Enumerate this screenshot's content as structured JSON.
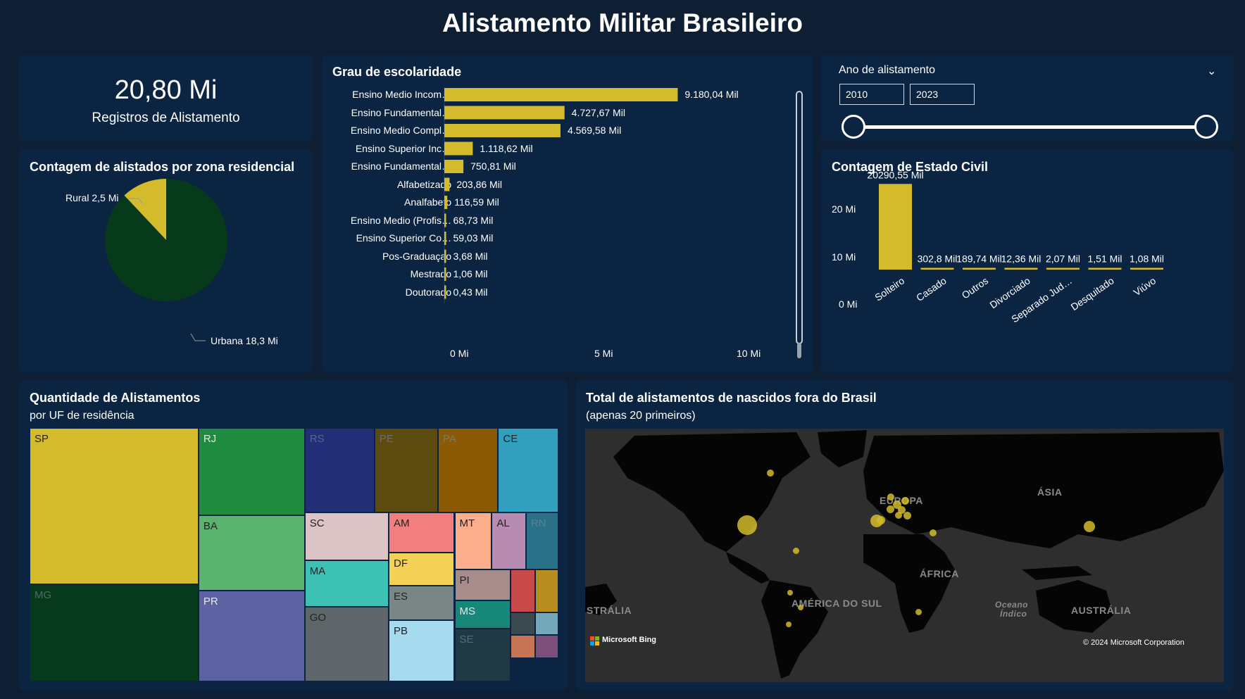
{
  "page": {
    "title": "Alistamento Militar Brasileiro"
  },
  "kpi": {
    "value": "20,80 Mi",
    "label": "Registros de Alistamento"
  },
  "zone": {
    "title": "Contagem de alistados por zona residencial",
    "slices": [
      {
        "label": "Rural 2,5 Mi",
        "value": 2.5,
        "color": "#d4bb2b"
      },
      {
        "label": "Urbana 18,3 Mi",
        "value": 18.3,
        "color": "#063a1b"
      }
    ]
  },
  "education": {
    "title": "Grau de escolaridade",
    "ticks": [
      "0 Mi",
      "5 Mi",
      "10 Mi"
    ],
    "bar_color": "#d4bb2b"
  },
  "slicer": {
    "title": "Ano de alistamento",
    "start": "2010",
    "end": "2023"
  },
  "civil": {
    "title": "Contagem de Estado Civil",
    "yticks": [
      "20 Mi",
      "10 Mi",
      "0 Mi"
    ]
  },
  "treemap": {
    "title": "Quantidade de Alistamentos",
    "subtitle": "por UF de residência",
    "cells": [
      {
        "label": "SP",
        "color": "#d4bb2b"
      },
      {
        "label": "MG",
        "color": "#073a1c"
      },
      {
        "label": "RJ",
        "color": "#1f8b3f"
      },
      {
        "label": "BA",
        "color": "#5bb46d"
      },
      {
        "label": "PR",
        "color": "#5d62a2"
      },
      {
        "label": "RS",
        "color": "#222e75"
      },
      {
        "label": "PE",
        "color": "#5d4a0e"
      },
      {
        "label": "PA",
        "color": "#8a5a04"
      },
      {
        "label": "CE",
        "color": "#339fbf"
      },
      {
        "label": "SC",
        "color": "#dcc4c6"
      },
      {
        "label": "MA",
        "color": "#3dc1b4"
      },
      {
        "label": "GO",
        "color": "#5f6669"
      },
      {
        "label": "AM",
        "color": "#f37e7e"
      },
      {
        "label": "DF",
        "color": "#f4d055"
      },
      {
        "label": "ES",
        "color": "#7a8585"
      },
      {
        "label": "PB",
        "color": "#a6dbef"
      },
      {
        "label": "MT",
        "color": "#fcad8b"
      },
      {
        "label": "AL",
        "color": "#b88bb2"
      },
      {
        "label": "RN",
        "color": "#2a7188"
      },
      {
        "label": "PI",
        "color": "#a78c8c"
      },
      {
        "label": "MS",
        "color": "#178779"
      },
      {
        "label": "SE",
        "color": "#1f3a45"
      },
      {
        "label": "",
        "color": "#c94a4a"
      },
      {
        "label": "",
        "color": "#b88e22"
      },
      {
        "label": "",
        "color": "#3c4a50"
      },
      {
        "label": "",
        "color": "#74a9bc"
      },
      {
        "label": "",
        "color": "#c67453"
      },
      {
        "label": "",
        "color": "#7e4f7a"
      }
    ]
  },
  "map": {
    "title": "Total de alistamentos de nascidos fora do Brasil",
    "subtitle": "(apenas 20 primeiros)",
    "labels": {
      "europe": "EUROPA",
      "asia": "ÁSIA",
      "africa": "ÁFRICA",
      "south_america": "AMÉRICA DO SUL",
      "australia_left": "STRÁLIA",
      "ocean": "Oceano",
      "ocean2": "Índico",
      "australia": "AUSTRÁLIA"
    },
    "brand": "Microsoft Bing",
    "copyright": "© 2024 Microsoft Corporation"
  },
  "chart_data": [
    {
      "type": "pie",
      "title": "Contagem de alistados por zona residencial",
      "categories": [
        "Rural",
        "Urbana"
      ],
      "values": [
        2.5,
        18.3
      ],
      "unit": "Mi"
    },
    {
      "type": "bar",
      "orientation": "horizontal",
      "title": "Grau de escolaridade",
      "categories": [
        "Ensino Medio Incom…",
        "Ensino Fundamental…",
        "Ensino Medio Compl…",
        "Ensino Superior Inc…",
        "Ensino Fundamental…",
        "Alfabetizado",
        "Analfabeto",
        "Ensino Medio (Profis…",
        "Ensino Superior Co…",
        "Pos-Graduaçao",
        "Mestrado",
        "Doutorado"
      ],
      "values": [
        9180.04,
        4727.67,
        4569.58,
        1118.62,
        750.81,
        203.86,
        116.59,
        68.73,
        59.03,
        3.68,
        1.06,
        0.43
      ],
      "labels": [
        "9.180,04 Mil",
        "4.727,67 Mil",
        "4.569,58 Mil",
        "1.118,62 Mil",
        "750,81 Mil",
        "203,86 Mil",
        "116,59 Mil",
        "68,73 Mil",
        "59,03 Mil",
        "3,68 Mil",
        "1,06 Mil",
        "0,43 Mil"
      ],
      "xlim": [
        0,
        11500
      ],
      "unit": "Mil"
    },
    {
      "type": "bar",
      "title": "Contagem de Estado Civil",
      "categories": [
        "Solteiro",
        "Casado",
        "Outros",
        "Divorciado",
        "Separado Jud…",
        "Desquitado",
        "Viúvo"
      ],
      "values": [
        20290.55,
        302.8,
        189.74,
        12.36,
        2.07,
        1.51,
        1.08
      ],
      "labels": [
        "20290,55 Mil",
        "302,8 Mil",
        "189,74 Mil",
        "12,36 Mil",
        "2,07 Mil",
        "1,51 Mil",
        "1,08 Mil"
      ],
      "ylim": [
        0,
        20000
      ],
      "unit": "Mil"
    }
  ]
}
